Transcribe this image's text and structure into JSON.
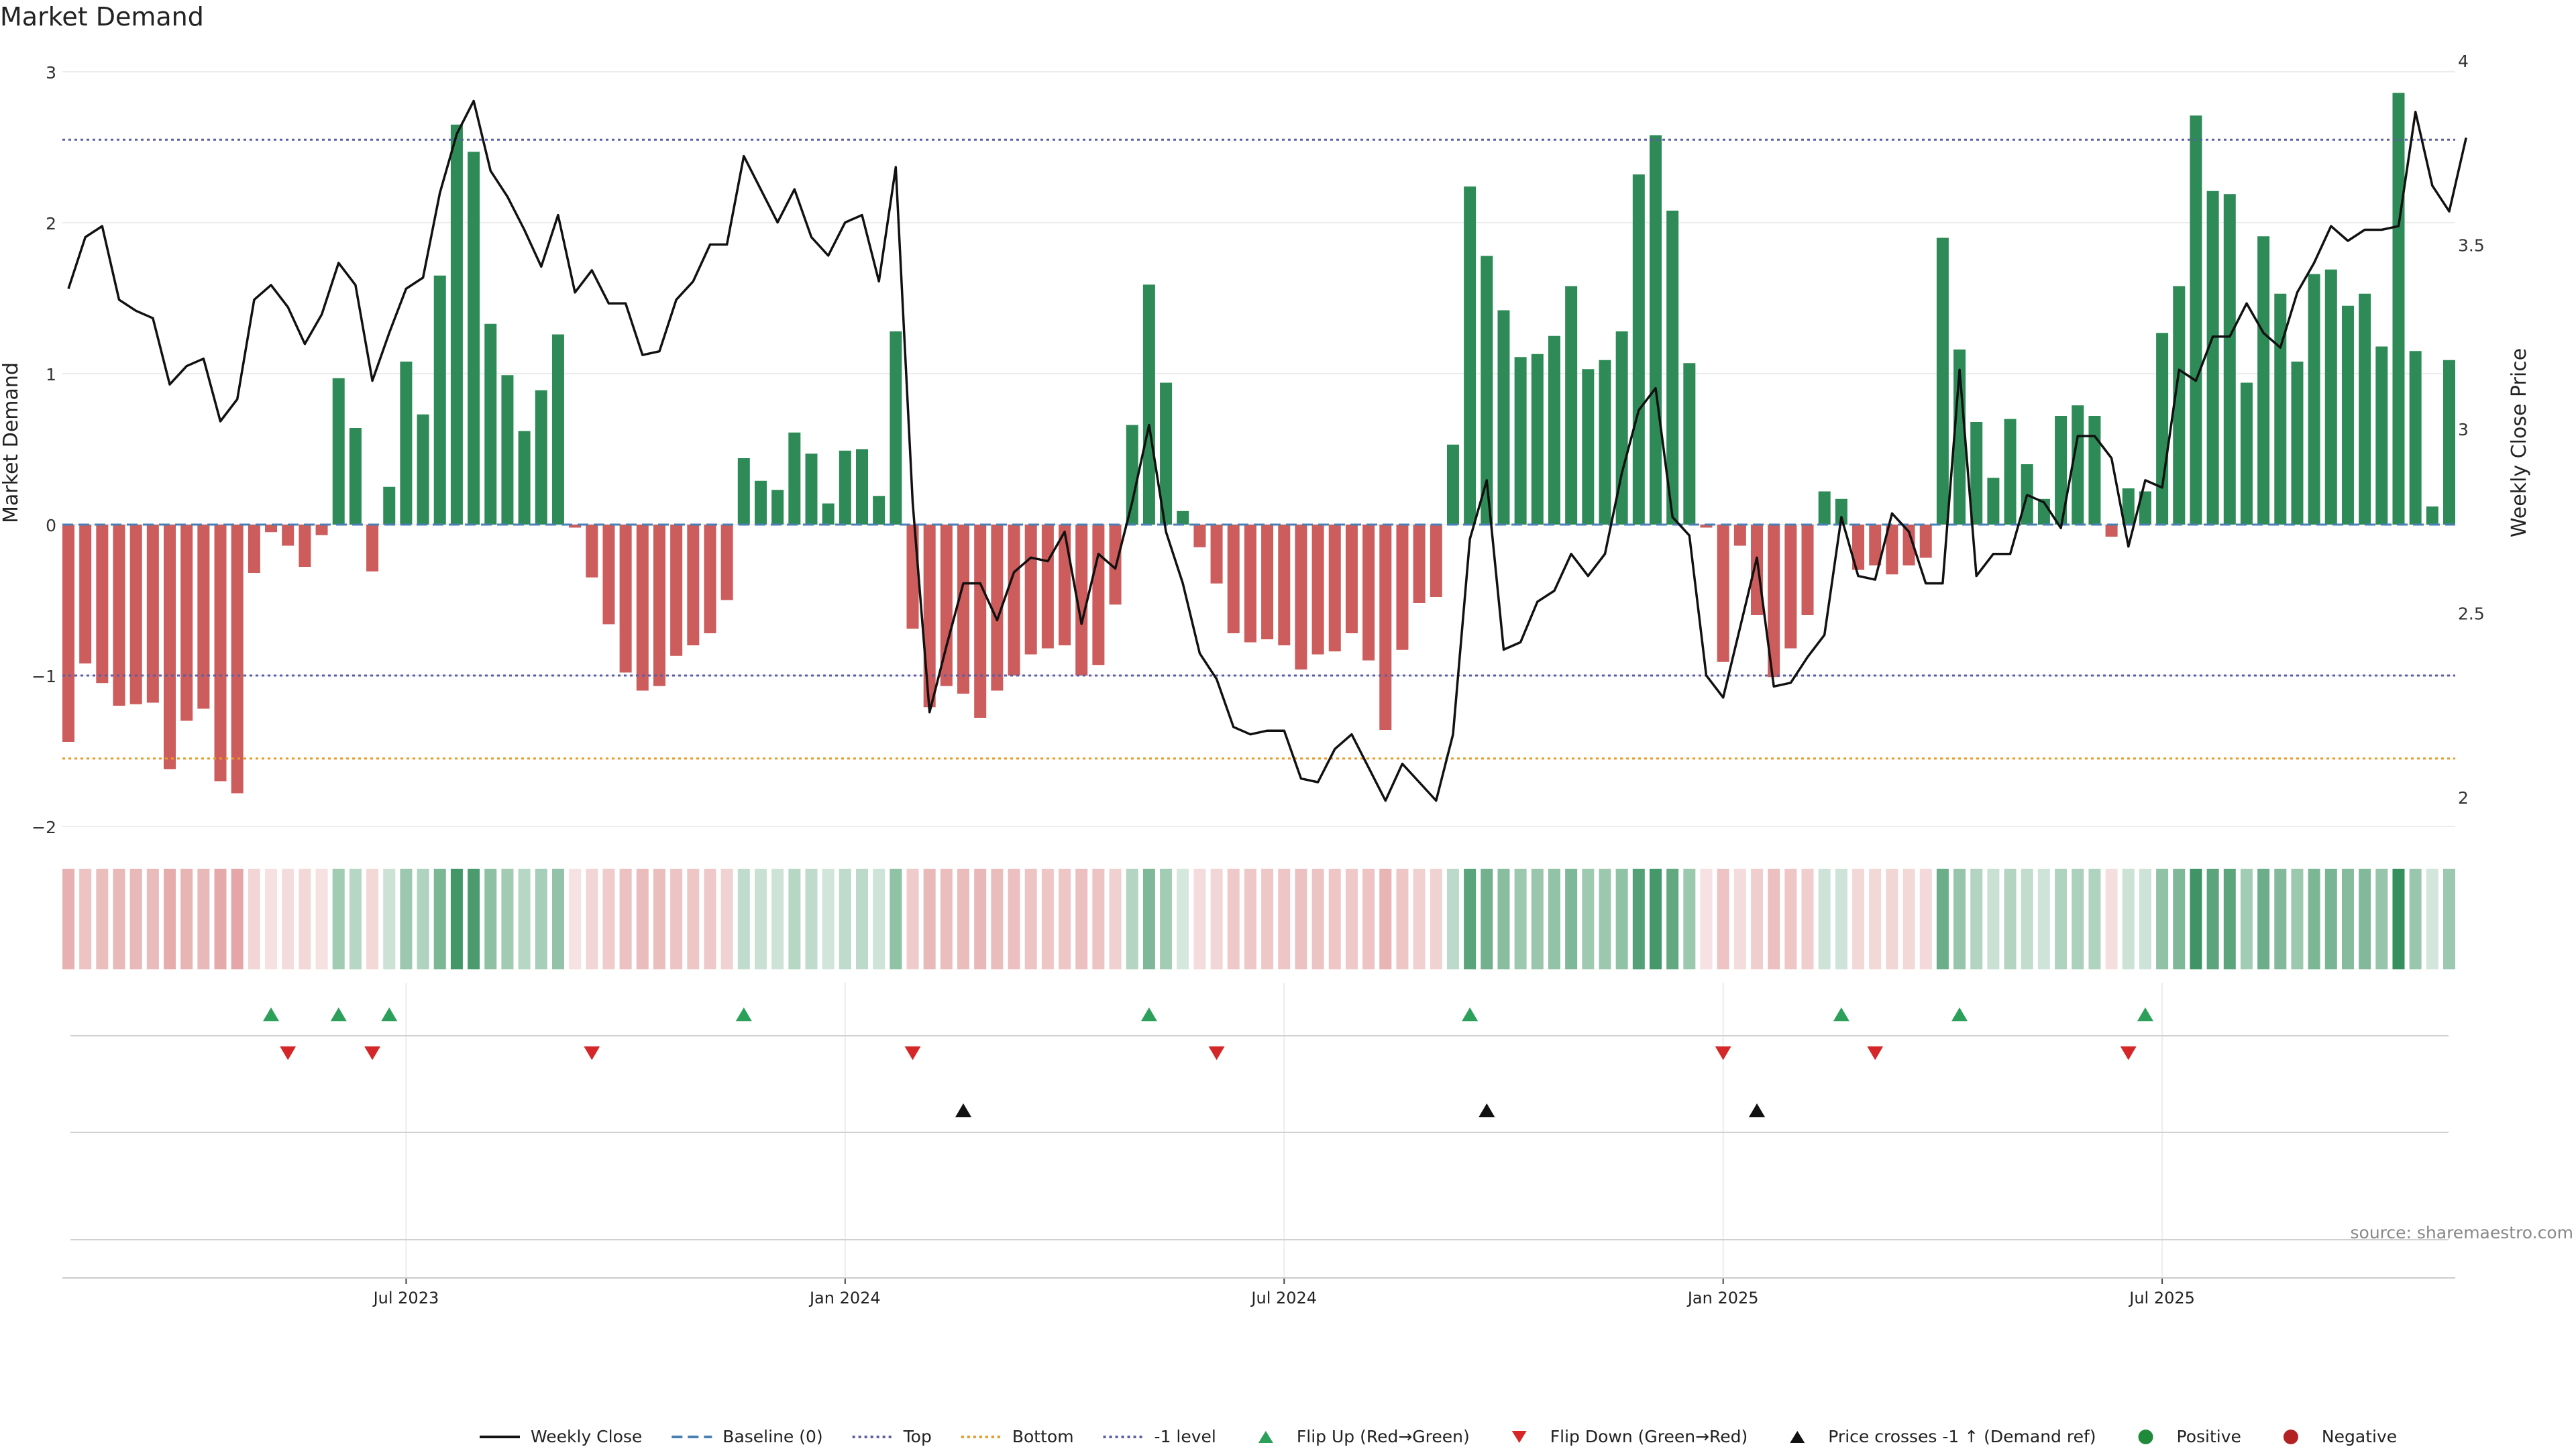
{
  "chart_data": {
    "type": "bar",
    "title": "Market Demand",
    "ylabel": "Market Demand",
    "ylabel_right": "Weekly Close Price",
    "ylim": [
      -2,
      3
    ],
    "ylim_right": [
      2,
      4
    ],
    "yticks": [
      3,
      2,
      1,
      0,
      -1,
      -2
    ],
    "yticks_labels": [
      "3",
      "2",
      "1",
      "0",
      "−1",
      "−2"
    ],
    "yticks_right": [
      4,
      3.5,
      3,
      2.5,
      2
    ],
    "yticks_right_labels": [
      "4",
      "3.5",
      "3",
      "2.5",
      "2"
    ],
    "x_tick_labels": [
      "Jul 2023",
      "Jan 2024",
      "Jul 2024",
      "Jan 2025",
      "Jul 2025"
    ],
    "x_tick_indices": [
      20,
      46,
      72,
      98,
      124
    ],
    "reference_lines": [
      {
        "name": "Top",
        "value": 2.55,
        "color": "#5b5ea6"
      },
      {
        "name": "Bottom",
        "value": -1.55,
        "color": "#e69a28"
      },
      {
        "name": "-1 level",
        "value": -1,
        "color": "#5b5ea6"
      },
      {
        "name": "Baseline (0)",
        "value": 0,
        "color": "#4a7fb5"
      }
    ],
    "demand": [
      -1.44,
      -0.92,
      -1.05,
      -1.2,
      -1.19,
      -1.18,
      -1.62,
      -1.3,
      -1.22,
      -1.7,
      -1.78,
      -0.32,
      -0.05,
      -0.14,
      -0.28,
      -0.07,
      0.97,
      0.64,
      -0.31,
      0.25,
      1.08,
      0.73,
      1.65,
      2.65,
      2.47,
      1.33,
      0.99,
      0.62,
      0.89,
      1.26,
      -0.02,
      -0.35,
      -0.66,
      -0.98,
      -1.1,
      -1.07,
      -0.87,
      -0.8,
      -0.72,
      -0.5,
      0.44,
      0.29,
      0.23,
      0.61,
      0.47,
      0.14,
      0.49,
      0.5,
      0.19,
      1.28,
      -0.69,
      -1.21,
      -1.07,
      -1.12,
      -1.28,
      -1.1,
      -1.0,
      -0.86,
      -0.82,
      -0.8,
      -1.0,
      -0.93,
      -0.53,
      0.66,
      1.59,
      0.94,
      0.09,
      -0.15,
      -0.39,
      -0.72,
      -0.78,
      -0.76,
      -0.8,
      -0.96,
      -0.86,
      -0.84,
      -0.72,
      -0.9,
      -1.36,
      -0.83,
      -0.52,
      -0.48,
      0.53,
      2.24,
      1.78,
      1.42,
      1.11,
      1.13,
      1.25,
      1.58,
      1.03,
      1.09,
      1.28,
      2.32,
      2.58,
      2.08,
      1.07,
      -0.02,
      -0.91,
      -0.14,
      -0.6,
      -1.01,
      -0.82,
      -0.6,
      0.22,
      0.17,
      -0.3,
      -0.27,
      -0.33,
      -0.27,
      -0.22,
      1.9,
      1.16,
      0.68,
      0.31,
      0.7,
      0.4,
      0.17,
      0.72,
      0.79,
      0.72,
      -0.08,
      0.24,
      0.22,
      1.27,
      1.58,
      2.71,
      2.21,
      2.19,
      0.94,
      1.91,
      1.53,
      1.08,
      1.66,
      1.69,
      1.45,
      1.53,
      1.18,
      2.86,
      1.15,
      0.12,
      1.09
    ],
    "price": [
      3.38,
      3.52,
      3.55,
      3.35,
      3.32,
      3.3,
      3.12,
      3.17,
      3.19,
      3.02,
      3.08,
      3.35,
      3.39,
      3.33,
      3.23,
      3.31,
      3.45,
      3.39,
      3.13,
      3.26,
      3.38,
      3.41,
      3.64,
      3.8,
      3.89,
      3.7,
      3.63,
      3.54,
      3.44,
      3.58,
      3.37,
      3.43,
      3.34,
      3.34,
      3.2,
      3.21,
      3.35,
      3.4,
      3.5,
      3.5,
      3.74,
      3.65,
      3.56,
      3.65,
      3.52,
      3.47,
      3.56,
      3.58,
      3.4,
      3.71,
      2.8,
      2.23,
      2.41,
      2.58,
      2.58,
      2.48,
      2.61,
      2.65,
      2.64,
      2.72,
      2.47,
      2.66,
      2.62,
      2.8,
      3.01,
      2.72,
      2.58,
      2.39,
      2.32,
      2.19,
      2.17,
      2.18,
      2.18,
      2.05,
      2.04,
      2.13,
      2.17,
      2.08,
      1.99,
      2.09,
      2.04,
      1.99,
      2.17,
      2.7,
      2.86,
      2.4,
      2.42,
      2.53,
      2.56,
      2.66,
      2.6,
      2.66,
      2.88,
      3.05,
      3.11,
      2.76,
      2.71,
      2.33,
      2.27,
      2.46,
      2.65,
      2.3,
      2.31,
      2.38,
      2.44,
      2.76,
      2.6,
      2.59,
      2.77,
      2.72,
      2.58,
      2.58,
      3.16,
      2.6,
      2.66,
      2.66,
      2.82,
      2.8,
      2.73,
      2.98,
      2.98,
      2.92,
      2.68,
      2.86,
      2.84,
      3.16,
      3.13,
      3.25,
      3.25,
      3.34,
      3.26,
      3.22,
      3.37,
      3.45,
      3.55,
      3.51,
      3.54,
      3.54,
      3.55,
      3.86,
      3.66,
      3.59,
      3.79
    ],
    "flip_up_indices": [
      12,
      16,
      19,
      40,
      64,
      83,
      105,
      112,
      123
    ],
    "flip_down_indices": [
      13,
      18,
      31,
      50,
      68,
      98,
      107,
      122
    ],
    "price_cross_indices": [
      53,
      84,
      100
    ],
    "source": "source: sharemaestro.com",
    "legend_position": "bottom",
    "legend": [
      {
        "label": "Weekly Close",
        "kind": "line",
        "color": "#111111"
      },
      {
        "label": "Baseline (0)",
        "kind": "dash",
        "color": "#4a7fb5"
      },
      {
        "label": "Top",
        "kind": "dot",
        "color": "#5b5ea6"
      },
      {
        "label": "Bottom",
        "kind": "dot",
        "color": "#e69a28"
      },
      {
        "label": "-1 level",
        "kind": "dot",
        "color": "#5b5ea6"
      },
      {
        "label": "Flip Up (Red→Green)",
        "kind": "tri-up",
        "color": "#2ca05a"
      },
      {
        "label": "Flip Down (Green→Red)",
        "kind": "tri-down",
        "color": "#d62728"
      },
      {
        "label": "Price crosses -1 ↑ (Demand ref)",
        "kind": "tri-up",
        "color": "#111111"
      },
      {
        "label": "Positive",
        "kind": "circle",
        "color": "#1f8a3a"
      },
      {
        "label": "Negative",
        "kind": "circle",
        "color": "#b22222"
      }
    ],
    "colors": {
      "positive_bar": "#2e8b57",
      "negative_bar": "#cd5c5c",
      "price_line": "#111111",
      "grid": "#ececec"
    }
  }
}
